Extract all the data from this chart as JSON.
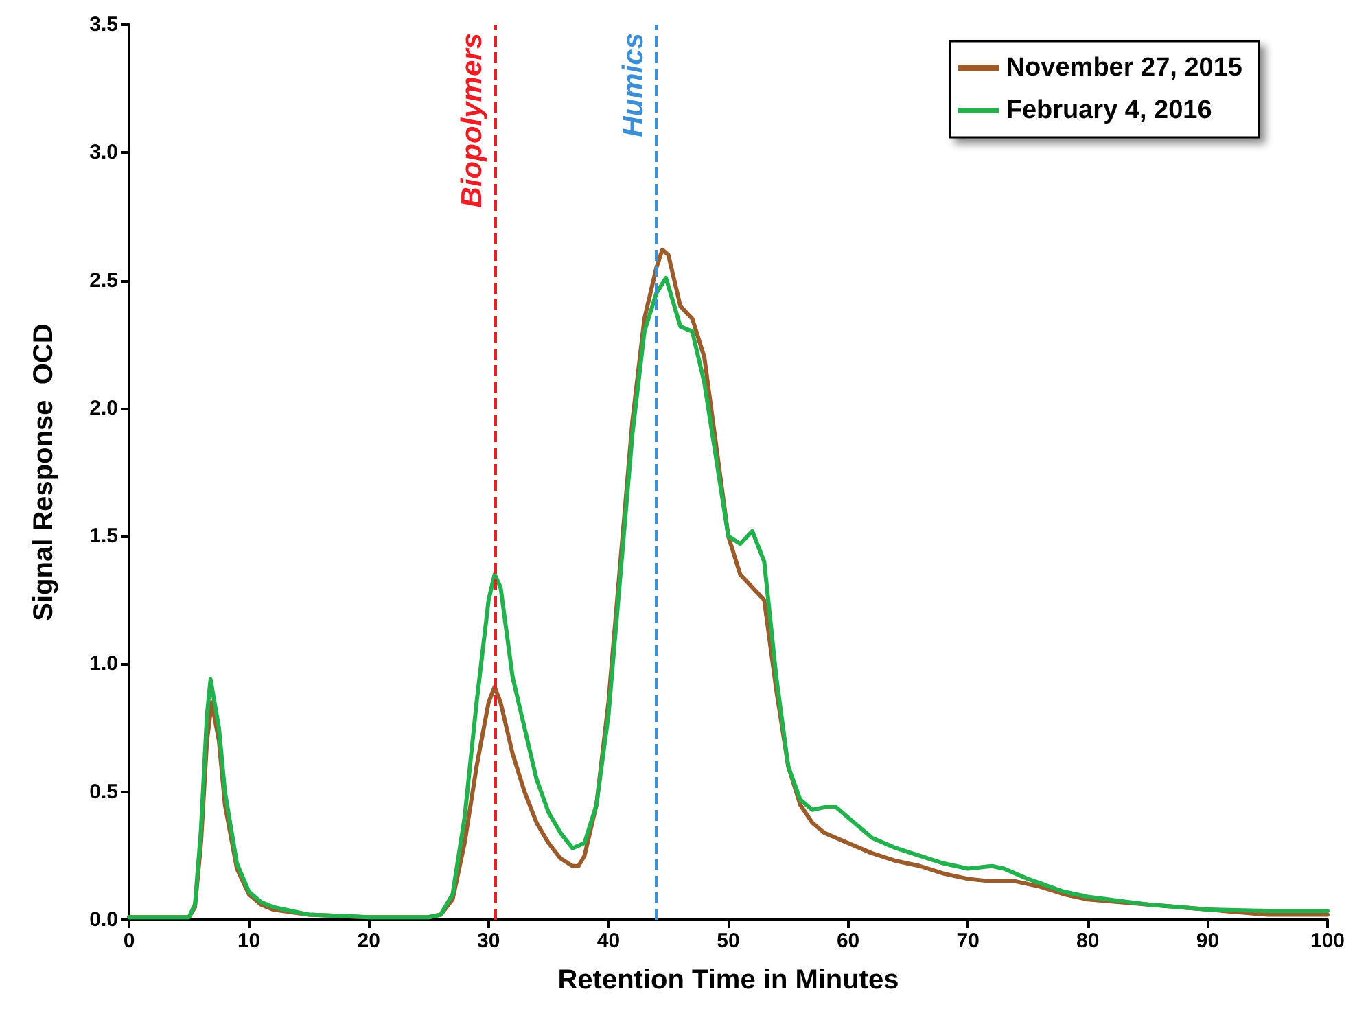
{
  "chart_data": {
    "type": "line",
    "xlabel": "Retention Time in Minutes",
    "ylabel": "Signal Response  OCD",
    "xlim": [
      0,
      100
    ],
    "xticks": [
      0,
      10,
      20,
      30,
      40,
      50,
      60,
      70,
      80,
      90,
      100
    ],
    "ylim": [
      0,
      3.5
    ],
    "yticks": [
      {
        "value": 0,
        "label": "0.0"
      },
      {
        "value": 0.5,
        "label": "0.5"
      },
      {
        "value": 1,
        "label": "1.0"
      },
      {
        "value": 1.5,
        "label": "1.5"
      },
      {
        "value": 2,
        "label": "2.0"
      },
      {
        "value": 2.5,
        "label": "2.5"
      },
      {
        "value": 3,
        "label": "3.0"
      },
      {
        "value": 3.5,
        "label": "3.5"
      }
    ],
    "grid": false,
    "legend": "top right",
    "marker": "none",
    "line_style": "solid",
    "ref_lines": [
      {
        "axis": "x",
        "value": 30.5,
        "label": "Biopolymers",
        "color": "#ee1c24",
        "line_style": "dashed"
      },
      {
        "axis": "x",
        "value": 44,
        "label": "Humics",
        "color": "#3b8fd9",
        "line_style": "dashed"
      }
    ],
    "series": [
      {
        "name": "November 27, 2015",
        "color": "#9b5b2b",
        "x": [
          0,
          4,
          5,
          5.5,
          6,
          6.5,
          6.9,
          7.5,
          8,
          9,
          10,
          11,
          12,
          15,
          20,
          25,
          26,
          27,
          28,
          29,
          30,
          30.5,
          31,
          32,
          33,
          34,
          35,
          36,
          37,
          37.5,
          38,
          39,
          40,
          41,
          42,
          43,
          44,
          44.5,
          45,
          46,
          47,
          48,
          49,
          50,
          51,
          52,
          53,
          54,
          55,
          56,
          57,
          58,
          60,
          62,
          64,
          66,
          68,
          70,
          72,
          74,
          76,
          78,
          80,
          85,
          90,
          95,
          100
        ],
        "values": [
          0.01,
          0.01,
          0.01,
          0.05,
          0.3,
          0.7,
          0.85,
          0.7,
          0.45,
          0.2,
          0.1,
          0.06,
          0.04,
          0.02,
          0.01,
          0.01,
          0.02,
          0.08,
          0.3,
          0.6,
          0.85,
          0.91,
          0.85,
          0.65,
          0.5,
          0.38,
          0.3,
          0.24,
          0.21,
          0.21,
          0.25,
          0.45,
          0.85,
          1.4,
          1.95,
          2.35,
          2.55,
          2.62,
          2.6,
          2.4,
          2.35,
          2.2,
          1.85,
          1.5,
          1.35,
          1.3,
          1.25,
          0.9,
          0.6,
          0.45,
          0.38,
          0.34,
          0.3,
          0.26,
          0.23,
          0.21,
          0.18,
          0.16,
          0.15,
          0.15,
          0.13,
          0.1,
          0.08,
          0.06,
          0.04,
          0.02,
          0.02
        ]
      },
      {
        "name": "February 4, 2016",
        "color": "#22b14c",
        "x": [
          0,
          4,
          5,
          5.5,
          6,
          6.5,
          6.8,
          7.5,
          8,
          9,
          10,
          11,
          12,
          15,
          20,
          25,
          26,
          27,
          28,
          29,
          30,
          30.5,
          31,
          32,
          33,
          34,
          35,
          36,
          37,
          38,
          39,
          40,
          41,
          42,
          43,
          44,
          44.8,
          45.5,
          46,
          47,
          48,
          49,
          50,
          51,
          52,
          53,
          54,
          55,
          56,
          57,
          58,
          59,
          60,
          62,
          64,
          66,
          68,
          70,
          72,
          73,
          75,
          78,
          80,
          85,
          90,
          95,
          100
        ],
        "values": [
          0.01,
          0.01,
          0.01,
          0.06,
          0.35,
          0.8,
          0.94,
          0.75,
          0.5,
          0.22,
          0.11,
          0.07,
          0.05,
          0.02,
          0.01,
          0.01,
          0.02,
          0.1,
          0.4,
          0.85,
          1.25,
          1.35,
          1.3,
          0.95,
          0.75,
          0.55,
          0.42,
          0.34,
          0.28,
          0.3,
          0.45,
          0.8,
          1.35,
          1.9,
          2.3,
          2.45,
          2.51,
          2.4,
          2.32,
          2.3,
          2.1,
          1.8,
          1.5,
          1.47,
          1.52,
          1.4,
          0.95,
          0.6,
          0.47,
          0.43,
          0.44,
          0.44,
          0.4,
          0.32,
          0.28,
          0.25,
          0.22,
          0.2,
          0.21,
          0.2,
          0.16,
          0.11,
          0.09,
          0.06,
          0.04,
          0.035,
          0.035
        ]
      }
    ]
  }
}
